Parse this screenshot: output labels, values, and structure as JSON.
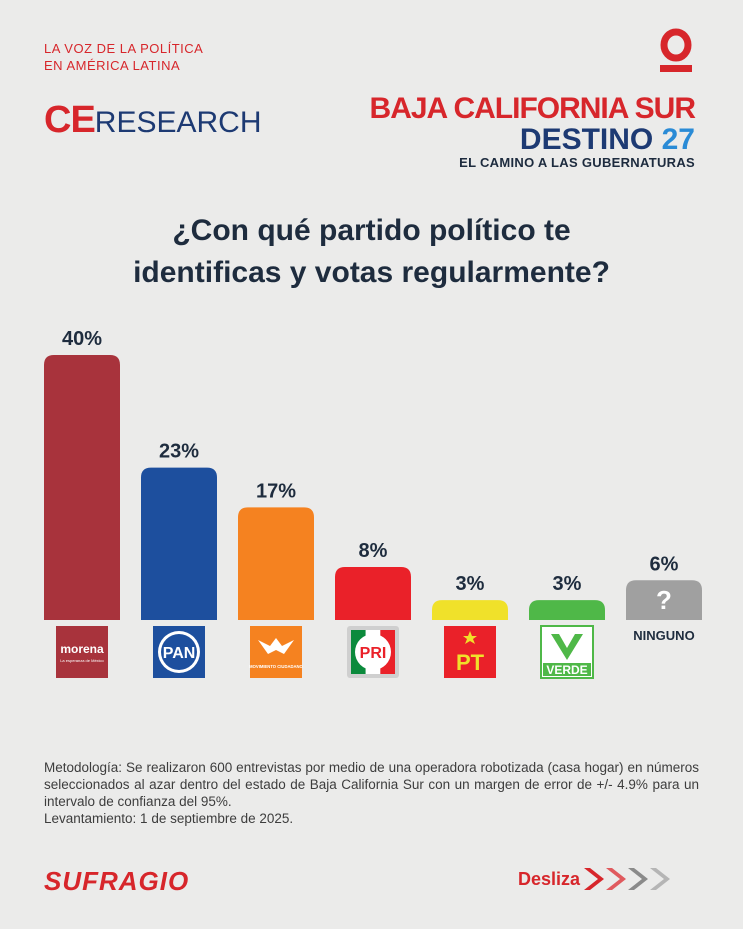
{
  "colors": {
    "brand_red": "#d7262b",
    "navy": "#1d3a73",
    "dark_text": "#1e2c3e"
  },
  "header": {
    "tagline_line1": "LA VOZ DE LA POLÍTICA",
    "tagline_line2": "EN AMÉRICA LATINA",
    "top_logo_icon": "circle-logo-icon",
    "ce_brand_prefix": "CE",
    "ce_brand_suffix": "RESEARCH",
    "state": "BAJA CALIFORNIA SUR",
    "destino_word": "DESTINO",
    "destino_number": "27",
    "subtitle": "EL CAMINO A LAS GUBERNATURAS"
  },
  "question": {
    "line1": "¿Con qué partido político te",
    "line2": "identificas y votas regularmente?"
  },
  "chart_data": {
    "type": "bar",
    "title": "¿Con qué partido político te identificas y votas regularmente?",
    "categories": [
      "morena",
      "PAN",
      "Movimiento Ciudadano",
      "PRI",
      "PT",
      "VERDE",
      "NINGUNO"
    ],
    "values": [
      40,
      23,
      17,
      8,
      3,
      3,
      6
    ],
    "value_labels": [
      "40%",
      "23%",
      "17%",
      "8%",
      "3%",
      "3%",
      "6%"
    ],
    "colors": [
      "#a8333c",
      "#1d4f9e",
      "#f58220",
      "#ea2129",
      "#f0e12a",
      "#4fb848",
      "#a0a0a0"
    ],
    "ylim": [
      0,
      40
    ],
    "xlabel": "",
    "ylabel": "",
    "grid": false,
    "legend": "none"
  },
  "logos": {
    "morena_text": "morena",
    "morena_sub": "La esperanza de México",
    "pan_text": "PAN",
    "mc_text": "MOVIMIENTO CIUDADANO",
    "pri_text": "PRI",
    "pt_text": "PT",
    "verde_text": "VERDE",
    "ninguno_symbol": "?",
    "ninguno_text": "NINGUNO"
  },
  "methodology": {
    "text": "Metodología: Se realizaron 600 entrevistas por medio de una operadora robotizada (casa hogar) en números seleccionados al azar dentro del estado de Baja California Sur con un margen de error de +/- 4.9% para un intervalo de confianza del 95%.",
    "date": "Levantamiento: 1 de septiembre de 2025."
  },
  "footer": {
    "brand": "SUFRAGIO",
    "swipe_label": "Desliza",
    "swipe_icon": "chevron-right-icon"
  }
}
